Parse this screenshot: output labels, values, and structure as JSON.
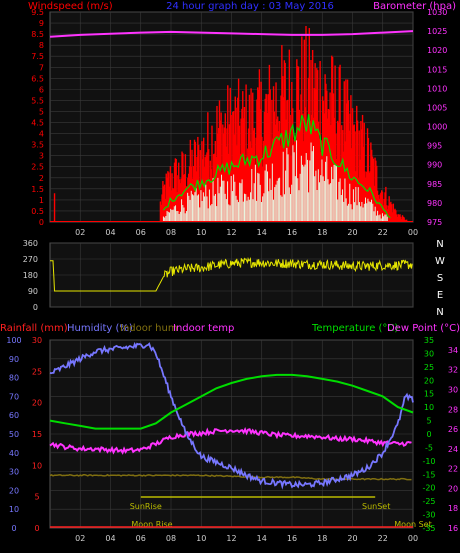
{
  "colors": {
    "bg": "#000000",
    "panel": "#000000",
    "grid": "#3a3a3a",
    "text": "#cfcfcf",
    "windspeed": "#ff0000",
    "gust": "#ff0000",
    "avgwind": "#00dd00",
    "windlight": "#e8f5e0",
    "barometer": "#ff33ff",
    "direction": "#e6e600",
    "rainfall": "#ff2020",
    "humidity": "#7777ff",
    "indoor_hum": "#806f10",
    "indoor_temp": "#ff33ff",
    "temperature": "#00dd00",
    "dewpoint": "#ff33ff",
    "sunline": "#bbbb00",
    "title": "#3030ff"
  },
  "chart_data": [
    {
      "type": "bar",
      "name": "wind-barometer",
      "title": "24 hour graph day : 03 May 2016",
      "left_label": "Windspeed (m/s)",
      "right_label": "Barometer (hpa)",
      "x_ticks": [
        "02",
        "04",
        "06",
        "08",
        "10",
        "12",
        "14",
        "16",
        "18",
        "20",
        "22",
        "00"
      ],
      "y_ticks_left": [
        "0",
        "0.5",
        "1",
        "1.5",
        "2",
        "2.5",
        "3",
        "3.5",
        "4",
        "4.5",
        "5",
        "5.5",
        "6",
        "6.5",
        "7",
        "7.5",
        "8",
        "8.5",
        "9",
        "9.5"
      ],
      "y_ticks_right": [
        "975",
        "980",
        "985",
        "990",
        "995",
        "1000",
        "1005",
        "1010",
        "1015",
        "1020",
        "1025",
        "1030"
      ],
      "ylim_left": [
        0,
        9.5
      ],
      "ylim_right": [
        975,
        1030
      ],
      "xlim_hours": [
        0,
        24
      ],
      "gust_peaks": [
        [
          0,
          0
        ],
        [
          1,
          0
        ],
        [
          2,
          0
        ],
        [
          3,
          0
        ],
        [
          4,
          0
        ],
        [
          5,
          0
        ],
        [
          6,
          0
        ],
        [
          7,
          0
        ],
        [
          7.5,
          2.0
        ],
        [
          8,
          3.0
        ],
        [
          9,
          3.5
        ],
        [
          10,
          4.5
        ],
        [
          11,
          6.0
        ],
        [
          12,
          6.5
        ],
        [
          13,
          6.5
        ],
        [
          14,
          7.0
        ],
        [
          15,
          8.0
        ],
        [
          16,
          8.5
        ],
        [
          17,
          9.0
        ],
        [
          18,
          8.5
        ],
        [
          19,
          7.5
        ],
        [
          20,
          6.0
        ],
        [
          21,
          4.5
        ],
        [
          22,
          2.0
        ],
        [
          23,
          0.5
        ],
        [
          23.8,
          0
        ]
      ],
      "wind_avg": [
        [
          7.5,
          0.5
        ],
        [
          8,
          1.0
        ],
        [
          9,
          1.5
        ],
        [
          10,
          1.8
        ],
        [
          11,
          2.2
        ],
        [
          12,
          2.5
        ],
        [
          13,
          2.8
        ],
        [
          14,
          3.0
        ],
        [
          15,
          3.5
        ],
        [
          16,
          4.0
        ],
        [
          17,
          4.5
        ],
        [
          18,
          3.5
        ],
        [
          19,
          2.8
        ],
        [
          20,
          2.0
        ],
        [
          21,
          1.5
        ],
        [
          22,
          0.6
        ],
        [
          22.5,
          0.2
        ]
      ],
      "wind_light": [
        [
          7.5,
          0.2
        ],
        [
          8,
          0.6
        ],
        [
          9,
          1.0
        ],
        [
          10,
          1.3
        ],
        [
          11,
          1.6
        ],
        [
          12,
          1.8
        ],
        [
          13,
          2.0
        ],
        [
          14,
          2.2
        ],
        [
          15,
          2.5
        ],
        [
          16,
          2.8
        ],
        [
          17,
          3.2
        ],
        [
          18,
          2.5
        ],
        [
          19,
          2.0
        ],
        [
          20,
          1.4
        ],
        [
          21,
          1.0
        ],
        [
          22,
          0.3
        ]
      ],
      "barometer": [
        [
          0,
          1023.5
        ],
        [
          2,
          1024.0
        ],
        [
          4,
          1024.3
        ],
        [
          6,
          1024.6
        ],
        [
          8,
          1024.8
        ],
        [
          10,
          1024.6
        ],
        [
          12,
          1024.4
        ],
        [
          14,
          1024.2
        ],
        [
          16,
          1024.0
        ],
        [
          18,
          1024.0
        ],
        [
          20,
          1024.2
        ],
        [
          22,
          1024.6
        ],
        [
          24,
          1025.0
        ]
      ]
    },
    {
      "type": "line",
      "name": "wind-direction",
      "y_ticks": [
        "0",
        "90",
        "180",
        "270",
        "360"
      ],
      "compass": [
        "N",
        "W",
        "S",
        "E",
        "N"
      ],
      "ylim": [
        0,
        360
      ],
      "series": [
        [
          0,
          260
        ],
        [
          0.2,
          260
        ],
        [
          0.3,
          90
        ],
        [
          7,
          90
        ],
        [
          7.5,
          170
        ],
        [
          8,
          200
        ],
        [
          9,
          215
        ],
        [
          10,
          220
        ],
        [
          11,
          235
        ],
        [
          12,
          245
        ],
        [
          13,
          250
        ],
        [
          14,
          250
        ],
        [
          15,
          245
        ],
        [
          16,
          245
        ],
        [
          17,
          240
        ],
        [
          18,
          240
        ],
        [
          19,
          235
        ],
        [
          20,
          230
        ],
        [
          21,
          230
        ],
        [
          22,
          235
        ],
        [
          23,
          235
        ],
        [
          24,
          240
        ]
      ]
    },
    {
      "type": "line",
      "name": "temp-humidity",
      "labels": {
        "rainfall": "Rainfall (mm)",
        "humidity": "Humidity (%)",
        "indoor_hum": "Indoor hum",
        "indoor_temp": "Indoor temp",
        "temperature": "Temperature (°C)",
        "dewpoint": "Dew Point (°C)"
      },
      "x_ticks": [
        "02",
        "04",
        "06",
        "08",
        "10",
        "12",
        "14",
        "16",
        "18",
        "20",
        "22",
        "00"
      ],
      "y_ticks_humidity": [
        "0",
        "10",
        "20",
        "30",
        "40",
        "50",
        "60",
        "70",
        "80",
        "90",
        "100"
      ],
      "y_ticks_rain": [
        "0",
        "5",
        "10",
        "15",
        "20",
        "25",
        "30"
      ],
      "y_ticks_temp": [
        "-35",
        "-30",
        "-25",
        "-20",
        "-15",
        "-10",
        "-5",
        "0",
        "5",
        "10",
        "15",
        "20",
        "25",
        "30",
        "35"
      ],
      "y_ticks_indoor": [
        "16",
        "18",
        "20",
        "22",
        "24",
        "26",
        "28",
        "30",
        "32",
        "34"
      ],
      "ylim_humidity": [
        0,
        100
      ],
      "ylim_temp": [
        -35,
        35
      ],
      "ylim_indoor": [
        16,
        35
      ],
      "humidity": [
        [
          0,
          82
        ],
        [
          1,
          86
        ],
        [
          2,
          90
        ],
        [
          3,
          94
        ],
        [
          4,
          95
        ],
        [
          5,
          96
        ],
        [
          6,
          97
        ],
        [
          6.5,
          98
        ],
        [
          7,
          93
        ],
        [
          8,
          70
        ],
        [
          9,
          50
        ],
        [
          10,
          38
        ],
        [
          11,
          35
        ],
        [
          12,
          32
        ],
        [
          13,
          28
        ],
        [
          14,
          25
        ],
        [
          15,
          24
        ],
        [
          16,
          23
        ],
        [
          17,
          23
        ],
        [
          18,
          24
        ],
        [
          19,
          26
        ],
        [
          20,
          28
        ],
        [
          21,
          32
        ],
        [
          22,
          40
        ],
        [
          23,
          55
        ],
        [
          23.5,
          70
        ],
        [
          24,
          68
        ]
      ],
      "temperature": [
        [
          0,
          5
        ],
        [
          1,
          4
        ],
        [
          2,
          3
        ],
        [
          3,
          2
        ],
        [
          4,
          2
        ],
        [
          5,
          2
        ],
        [
          6,
          2
        ],
        [
          7,
          4
        ],
        [
          8,
          8
        ],
        [
          9,
          11
        ],
        [
          10,
          14
        ],
        [
          11,
          17
        ],
        [
          12,
          19
        ],
        [
          13,
          20.5
        ],
        [
          14,
          21.5
        ],
        [
          15,
          22
        ],
        [
          16,
          22
        ],
        [
          17,
          21.5
        ],
        [
          18,
          20.5
        ],
        [
          19,
          19.5
        ],
        [
          20,
          18
        ],
        [
          21,
          16
        ],
        [
          22,
          14
        ],
        [
          23,
          10
        ],
        [
          24,
          8
        ]
      ],
      "dewpoint": [
        [
          0,
          24.5
        ],
        [
          1,
          24.2
        ],
        [
          2,
          24.0
        ],
        [
          3,
          24.0
        ],
        [
          4,
          23.9
        ],
        [
          5,
          23.8
        ],
        [
          6,
          23.9
        ],
        [
          7,
          24.5
        ],
        [
          8,
          25.2
        ],
        [
          9,
          25.5
        ],
        [
          10,
          25.6
        ],
        [
          11,
          25.8
        ],
        [
          12,
          25.9
        ],
        [
          13,
          25.8
        ],
        [
          14,
          25.6
        ],
        [
          15,
          25.4
        ],
        [
          16,
          25.3
        ],
        [
          17,
          25.3
        ],
        [
          18,
          25.2
        ],
        [
          19,
          25.0
        ],
        [
          20,
          25.0
        ],
        [
          21,
          24.8
        ],
        [
          22,
          24.6
        ],
        [
          23,
          24.5
        ],
        [
          24,
          24.6
        ]
      ],
      "indoor_hum": [
        [
          0,
          28
        ],
        [
          2,
          28
        ],
        [
          4,
          28
        ],
        [
          6,
          28
        ],
        [
          8,
          28
        ],
        [
          10,
          28
        ],
        [
          12,
          27.5
        ],
        [
          14,
          27
        ],
        [
          16,
          27
        ],
        [
          18,
          26
        ],
        [
          20,
          26
        ],
        [
          22,
          26
        ],
        [
          24,
          26
        ]
      ],
      "sun_rise_hour": 6.0,
      "sun_set_hour": 21.5,
      "sunrise_label": "SunRise",
      "sunset_label": "SunSet",
      "moonrise_label": "Moon Rise",
      "moonset_label": "Moon Set"
    }
  ]
}
